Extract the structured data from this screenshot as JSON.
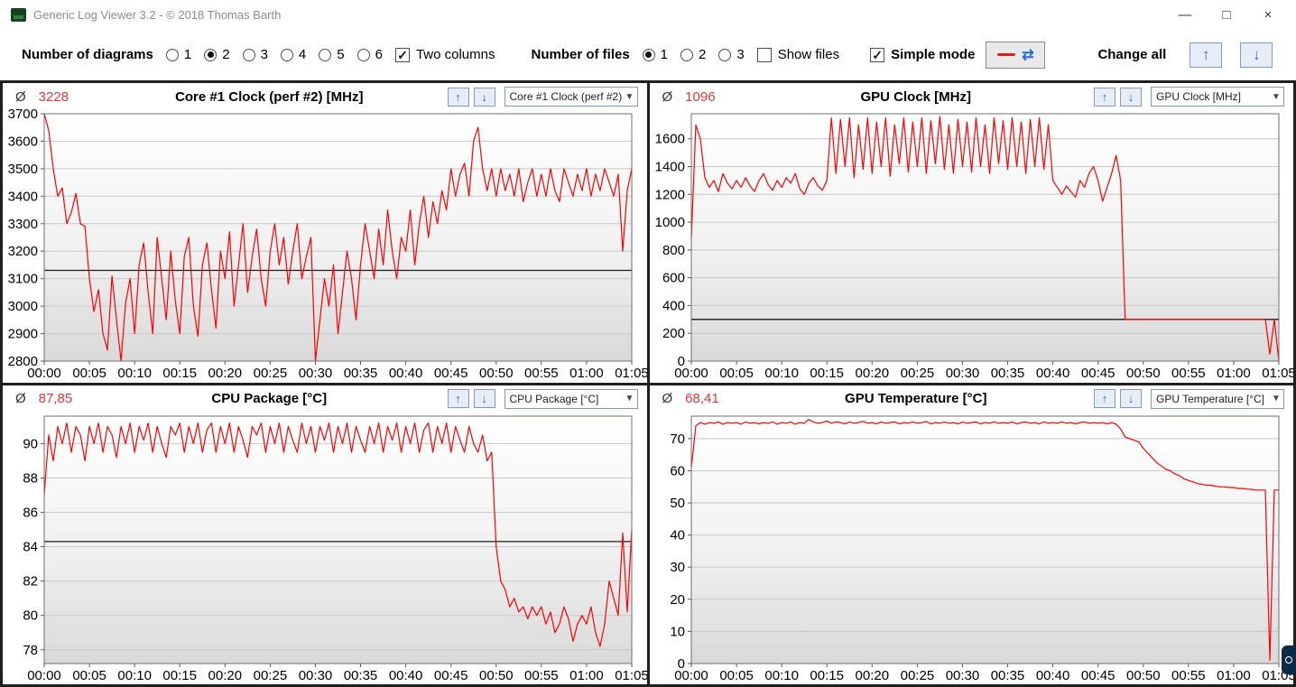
{
  "titlebar": {
    "title": "Generic Log Viewer 3.2 - © 2018 Thomas Barth",
    "window": {
      "minimize": "—",
      "maximize": "□",
      "close": "×"
    }
  },
  "toolbar": {
    "diagrams_label": "Number of diagrams",
    "diagram_options": [
      "1",
      "2",
      "3",
      "4",
      "5",
      "6"
    ],
    "diagrams_selected": "2",
    "two_columns_label": "Two columns",
    "two_columns_checked": true,
    "files_label": "Number of files",
    "file_options": [
      "1",
      "2",
      "3"
    ],
    "files_selected": "1",
    "show_files_label": "Show files",
    "show_files_checked": false,
    "simple_mode_label": "Simple mode",
    "simple_mode_checked": true,
    "swap_icon": "⇄",
    "change_all_label": "Change all",
    "up_arrow": "↑",
    "down_arrow": "↓"
  },
  "panels": [
    {
      "symbol": "Ø",
      "avg": "3228",
      "title": "Core #1 Clock (perf #2) [MHz]",
      "dropdown": "Core #1 Clock (perf #2) [MHz]",
      "up": "↑",
      "down": "↓",
      "chevron": "▼"
    },
    {
      "symbol": "Ø",
      "avg": "1096",
      "title": "GPU Clock [MHz]",
      "dropdown": "GPU Clock [MHz]",
      "up": "↑",
      "down": "↓",
      "chevron": "▼"
    },
    {
      "symbol": "Ø",
      "avg": "87,85",
      "title": "CPU Package [°C]",
      "dropdown": "CPU Package [°C]",
      "up": "↑",
      "down": "↓",
      "chevron": "▼"
    },
    {
      "symbol": "Ø",
      "avg": "68,41",
      "title": "GPU Temperature [°C]",
      "dropdown": "GPU Temperature [°C]",
      "up": "↑",
      "down": "↓",
      "chevron": "▼"
    }
  ],
  "chart_data": [
    {
      "type": "line",
      "title": "Core #1 Clock (perf #2) [MHz]",
      "series_color": "#fe0000",
      "average": 3228,
      "marker_line": 3130,
      "grid": true,
      "legend": "none",
      "ylim": [
        2800,
        3700
      ],
      "y_ticks": [
        2800,
        2900,
        3000,
        3100,
        3200,
        3300,
        3400,
        3500,
        3600,
        3700
      ],
      "xlim": [
        0,
        65
      ],
      "x_ticks": [
        0,
        5,
        10,
        15,
        20,
        25,
        30,
        35,
        40,
        45,
        50,
        55,
        60,
        65
      ],
      "x_tick_labels": [
        "00:00",
        "00:05",
        "00:10",
        "00:15",
        "00:20",
        "00:25",
        "00:30",
        "00:35",
        "00:40",
        "00:45",
        "00:50",
        "00:55",
        "01:00",
        "01:05"
      ],
      "x_start": 0,
      "x_step": 0.5,
      "values": [
        3700,
        3640,
        3500,
        3400,
        3430,
        3300,
        3340,
        3410,
        3300,
        3290,
        3100,
        2980,
        3060,
        2900,
        2840,
        3110,
        2950,
        2800,
        3010,
        3100,
        2900,
        3150,
        3230,
        3050,
        2900,
        3250,
        3100,
        2950,
        3200,
        3020,
        2900,
        3180,
        3250,
        3000,
        2890,
        3150,
        3230,
        3060,
        2920,
        3200,
        3100,
        3270,
        3000,
        3150,
        3300,
        3050,
        3180,
        3280,
        3100,
        3000,
        3200,
        3300,
        3150,
        3250,
        3080,
        3200,
        3300,
        3100,
        3180,
        3250,
        2800,
        2950,
        3100,
        3000,
        3150,
        2900,
        3050,
        3200,
        3100,
        2950,
        3150,
        3300,
        3200,
        3100,
        3280,
        3150,
        3350,
        3200,
        3100,
        3250,
        3200,
        3350,
        3150,
        3300,
        3400,
        3250,
        3380,
        3300,
        3420,
        3350,
        3500,
        3400,
        3480,
        3520,
        3400,
        3600,
        3650,
        3500,
        3420,
        3500,
        3400,
        3500,
        3420,
        3480,
        3400,
        3500,
        3380,
        3450,
        3500,
        3400,
        3480,
        3400,
        3500,
        3420,
        3380,
        3500,
        3450,
        3400,
        3480,
        3420,
        3500,
        3400,
        3480,
        3420,
        3500,
        3450,
        3400,
        3480,
        3200,
        3420,
        3500
      ]
    },
    {
      "type": "line",
      "title": "GPU Clock [MHz]",
      "series_color": "#fe0000",
      "average": 1096,
      "marker_line": 300,
      "grid": true,
      "legend": "none",
      "ylim": [
        0,
        1780
      ],
      "y_ticks": [
        0,
        200,
        400,
        600,
        800,
        1000,
        1200,
        1400,
        1600
      ],
      "xlim": [
        0,
        65
      ],
      "x_ticks": [
        0,
        5,
        10,
        15,
        20,
        25,
        30,
        35,
        40,
        45,
        50,
        55,
        60,
        65
      ],
      "x_tick_labels": [
        "00:00",
        "00:05",
        "00:10",
        "00:15",
        "00:20",
        "00:25",
        "00:30",
        "00:35",
        "00:40",
        "00:45",
        "00:50",
        "00:55",
        "01:00",
        "01:05"
      ],
      "x_start": 0,
      "x_step": 0.5,
      "values": [
        880,
        1700,
        1600,
        1320,
        1250,
        1300,
        1220,
        1350,
        1280,
        1240,
        1300,
        1250,
        1320,
        1260,
        1220,
        1300,
        1350,
        1270,
        1230,
        1300,
        1250,
        1320,
        1280,
        1350,
        1240,
        1200,
        1280,
        1320,
        1260,
        1230,
        1300,
        1750,
        1350,
        1740,
        1400,
        1750,
        1320,
        1700,
        1380,
        1750,
        1350,
        1720,
        1400,
        1750,
        1330,
        1700,
        1420,
        1750,
        1360,
        1720,
        1400,
        1750,
        1350,
        1730,
        1420,
        1760,
        1380,
        1700,
        1350,
        1740,
        1400,
        1720,
        1360,
        1750,
        1400,
        1700,
        1350,
        1750,
        1420,
        1730,
        1380,
        1750,
        1400,
        1720,
        1350,
        1740,
        1400,
        1750,
        1380,
        1700,
        1300,
        1250,
        1200,
        1260,
        1220,
        1180,
        1300,
        1250,
        1350,
        1400,
        1300,
        1150,
        1250,
        1350,
        1480,
        1300,
        300,
        300,
        300,
        300,
        300,
        300,
        300,
        300,
        300,
        300,
        300,
        300,
        300,
        300,
        300,
        300,
        300,
        300,
        300,
        300,
        300,
        300,
        300,
        300,
        300,
        300,
        300,
        300,
        300,
        300,
        300,
        300,
        50,
        300,
        0
      ]
    },
    {
      "type": "line",
      "title": "CPU Package [°C]",
      "series_color": "#fe0000",
      "average": 87.85,
      "marker_line": 84.3,
      "grid": true,
      "legend": "none",
      "ylim": [
        77.2,
        91.6
      ],
      "y_ticks": [
        78,
        80,
        82,
        84,
        86,
        88,
        90
      ],
      "xlim": [
        0,
        65
      ],
      "x_ticks": [
        0,
        5,
        10,
        15,
        20,
        25,
        30,
        35,
        40,
        45,
        50,
        55,
        60,
        65
      ],
      "x_tick_labels": [
        "00:00",
        "00:05",
        "00:10",
        "00:15",
        "00:20",
        "00:25",
        "00:30",
        "00:35",
        "00:40",
        "00:45",
        "00:50",
        "00:55",
        "01:00",
        "01:05"
      ],
      "x_start": 0,
      "x_step": 0.5,
      "values": [
        87,
        90.5,
        89,
        91,
        90,
        91.2,
        89.5,
        91,
        90.5,
        89,
        91,
        90,
        91.2,
        89.5,
        91,
        90.5,
        89.2,
        91,
        90,
        91.2,
        89.5,
        91,
        90.2,
        91.2,
        89.5,
        91,
        90,
        89.2,
        91,
        90.5,
        91.2,
        89.5,
        91,
        90,
        91.2,
        89.5,
        90.8,
        91.2,
        89.5,
        91,
        90,
        91.2,
        89.5,
        91,
        90.2,
        89.2,
        91,
        90.5,
        91.2,
        89.5,
        91,
        90,
        91.2,
        89.5,
        91,
        90.2,
        89.5,
        91.2,
        90,
        91,
        89.5,
        91,
        90.2,
        91.2,
        89.5,
        91,
        90,
        91.2,
        89.5,
        91,
        90.2,
        89.5,
        91,
        90,
        91.2,
        89.5,
        91,
        90.2,
        91.2,
        89.5,
        91,
        90,
        91.2,
        89.5,
        90.8,
        91.2,
        89.5,
        91,
        90,
        91.2,
        89.5,
        91,
        90.2,
        89.5,
        91,
        90,
        89.5,
        90.5,
        89,
        89.5,
        84,
        82,
        81.5,
        80.5,
        81,
        80.2,
        80.5,
        79.8,
        80.5,
        80,
        80.5,
        79.5,
        80.2,
        79,
        79.5,
        80.5,
        79.8,
        78.5,
        79.5,
        80,
        79.5,
        80.5,
        79,
        78.2,
        79.5,
        82,
        81,
        80,
        84.8,
        80.2,
        85
      ]
    },
    {
      "type": "line",
      "title": "GPU Temperature [°C]",
      "series_color": "#fe0000",
      "average": 68.41,
      "marker_line": null,
      "grid": true,
      "legend": "none",
      "ylim": [
        0,
        77
      ],
      "y_ticks": [
        0,
        10,
        20,
        30,
        40,
        50,
        60,
        70
      ],
      "xlim": [
        0,
        65
      ],
      "x_ticks": [
        0,
        5,
        10,
        15,
        20,
        25,
        30,
        35,
        40,
        45,
        50,
        55,
        60,
        65
      ],
      "x_tick_labels": [
        "00:00",
        "00:05",
        "00:10",
        "00:15",
        "00:20",
        "00:25",
        "00:30",
        "00:35",
        "00:40",
        "00:45",
        "00:50",
        "00:55",
        "01:00",
        "01:05"
      ],
      "x_start": 0,
      "x_step": 0.5,
      "values": [
        61,
        74,
        75,
        74.5,
        75,
        74.8,
        75.2,
        74.5,
        75,
        74.8,
        75,
        74.5,
        75.2,
        74.8,
        75,
        74.6,
        75,
        74.8,
        75.2,
        74.5,
        75,
        74.8,
        75.2,
        74.5,
        75,
        74.8,
        76,
        75.2,
        74.8,
        75,
        75.5,
        74.8,
        75.2,
        75,
        74.6,
        75.2,
        74.8,
        75,
        75.4,
        74.8,
        75,
        74.6,
        75.2,
        74.8,
        75,
        75.2,
        74.6,
        75,
        74.8,
        75.2,
        74.8,
        75,
        75.3,
        74.6,
        75,
        74.8,
        75.2,
        74.8,
        75,
        74.6,
        75.2,
        74.8,
        75,
        75.2,
        74.6,
        75,
        74.8,
        75.2,
        74.8,
        75,
        74.8,
        75.2,
        74.6,
        75,
        75.2,
        74.8,
        75,
        74.6,
        75.2,
        74.8,
        75,
        74.8,
        75.2,
        74.8,
        75,
        74.6,
        75,
        75.2,
        74.8,
        75,
        74.8,
        75,
        74.6,
        75,
        74.5,
        73,
        70.5,
        70,
        69.5,
        69,
        67,
        65.5,
        64,
        62.5,
        61.5,
        60.5,
        60,
        59,
        58.5,
        57.5,
        57,
        56.5,
        56,
        55.8,
        55.5,
        55.5,
        55.2,
        55,
        55,
        54.8,
        54.8,
        54.5,
        54.5,
        54.3,
        54.2,
        54,
        54,
        54,
        1,
        54,
        54
      ]
    }
  ]
}
